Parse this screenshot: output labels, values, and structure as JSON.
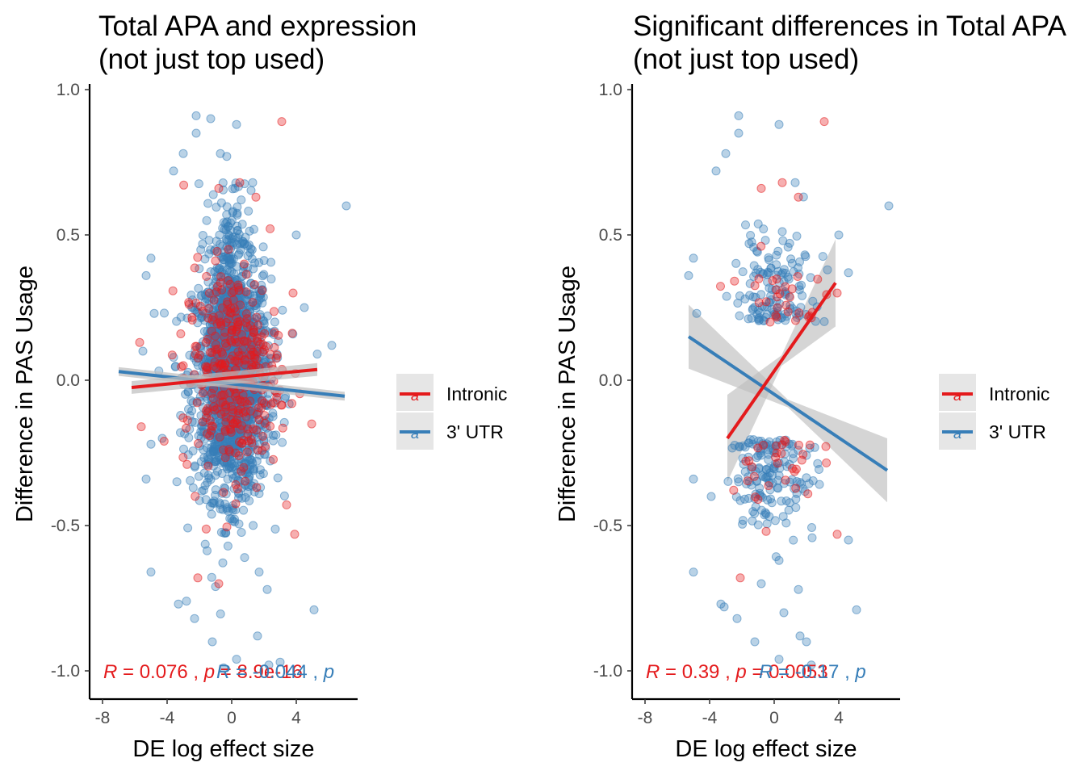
{
  "colors": {
    "intronic": "#E41A1C",
    "utr": "#377EB8",
    "band": "#BEBEBE",
    "axis": "#000000"
  },
  "chart_data": [
    {
      "type": "scatter",
      "title_lines": [
        "Total APA and expression",
        "(not just top used)"
      ],
      "xlabel": "DE log effect size",
      "ylabel": "Difference in PAS Usage",
      "xlim": [
        -8.5,
        7.8
      ],
      "ylim": [
        -1.04,
        1.03
      ],
      "xticks": [
        -8,
        -4,
        0,
        4
      ],
      "xtick_labels": [
        "-8",
        "-4",
        "0",
        "4"
      ],
      "yticks": [
        -1.0,
        -0.5,
        0.0,
        0.5,
        1.0
      ],
      "ytick_labels": [
        "-1.0",
        "-0.5",
        "0.0",
        "0.5",
        "1.0"
      ],
      "grid": false,
      "legend_position": "right",
      "legend": [
        {
          "name": "Intronic",
          "color": "#E41A1C"
        },
        {
          "name": "3' UTR",
          "color": "#377EB8"
        }
      ],
      "series": [
        {
          "name": "3' UTR",
          "color": "#377EB8",
          "point_groups": [
            {
              "x_mean": 0.0,
              "x_sd": 1.2,
              "y_mean": 0.0,
              "y_sd": 0.2,
              "count": 1400
            },
            {
              "x_mean": 0.0,
              "x_sd": 0.6,
              "y_mean": 0.15,
              "y_sd": 0.25,
              "count": 500
            }
          ],
          "outliers": [
            [
              -2.2,
              0.91
            ],
            [
              -1.3,
              0.9
            ],
            [
              0.3,
              0.88
            ],
            [
              -2.2,
              0.85
            ],
            [
              -3.0,
              0.78
            ],
            [
              -0.7,
              0.78
            ],
            [
              -3.6,
              0.72
            ],
            [
              1.3,
              0.68
            ],
            [
              0.2,
              0.66
            ],
            [
              7.1,
              0.6
            ],
            [
              4.0,
              0.5
            ],
            [
              -5.0,
              0.42
            ],
            [
              -5.3,
              0.36
            ],
            [
              -4.8,
              0.23
            ],
            [
              -5.5,
              0.1
            ],
            [
              -5.0,
              -0.22
            ],
            [
              -5.3,
              -0.34
            ],
            [
              -5.0,
              -0.66
            ],
            [
              -3.3,
              -0.77
            ],
            [
              -2.3,
              -0.82
            ],
            [
              -1.2,
              -0.9
            ],
            [
              0.3,
              -0.96
            ],
            [
              1.6,
              -0.88
            ],
            [
              2.3,
              -0.98
            ],
            [
              5.1,
              -0.79
            ],
            [
              6.2,
              0.12
            ],
            [
              -4.3,
              -0.2
            ],
            [
              5.3,
              0.09
            ],
            [
              4.5,
              0.25
            ],
            [
              -2.8,
              -0.76
            ],
            [
              -1.0,
              -0.71
            ],
            [
              0.8,
              -0.61
            ],
            [
              1.7,
              -0.66
            ],
            [
              2.2,
              -0.72
            ],
            [
              -0.5,
              -0.99
            ],
            [
              3.0,
              -0.97
            ]
          ],
          "fit": {
            "x0": -7.0,
            "y0": 0.03,
            "x1": 7.0,
            "y1": -0.055,
            "band": 0.015
          }
        },
        {
          "name": "Intronic",
          "color": "#E41A1C",
          "point_groups": [
            {
              "x_mean": 0.0,
              "x_sd": 1.5,
              "y_mean": 0.03,
              "y_sd": 0.18,
              "count": 350
            }
          ],
          "outliers": [
            [
              3.1,
              0.89
            ],
            [
              0.5,
              0.68
            ],
            [
              1.5,
              0.63
            ],
            [
              -0.8,
              0.66
            ],
            [
              -2.1,
              -0.68
            ],
            [
              3.9,
              -0.53
            ],
            [
              3.8,
              0.3
            ],
            [
              -5.7,
              0.13
            ],
            [
              -5.6,
              -0.16
            ],
            [
              -0.8,
              -0.7
            ],
            [
              -0.2,
              0.45
            ]
          ],
          "fit": {
            "x0": -6.2,
            "y0": -0.025,
            "x1": 5.3,
            "y1": 0.037,
            "band": 0.022
          }
        }
      ],
      "stats_text": [
        {
          "r_symbol": "R",
          "rest": " = 0.076 , ",
          "p_symbol": "p",
          "p_rest": " = 8.9e-16",
          "color": "#E41A1C"
        },
        {
          "r_symbol": "R",
          "rest": " = -0.044 , ",
          "p_symbol": "p",
          "p_rest": " = ",
          "color": "#377EB8"
        }
      ]
    },
    {
      "type": "scatter",
      "title_lines": [
        "Significant differences in Total APA",
        "(not just top used)"
      ],
      "xlabel": "DE log effect size",
      "ylabel": "Difference in PAS Usage",
      "xlim": [
        -8.5,
        7.8
      ],
      "ylim": [
        -1.04,
        1.03
      ],
      "xticks": [
        -8,
        -4,
        0,
        4
      ],
      "xtick_labels": [
        "-8",
        "-4",
        "0",
        "4"
      ],
      "yticks": [
        -1.0,
        -0.5,
        0.0,
        0.5,
        1.0
      ],
      "ytick_labels": [
        "-1.0",
        "-0.5",
        "0.0",
        "0.5",
        "1.0"
      ],
      "grid": false,
      "legend_position": "right",
      "legend": [
        {
          "name": "Intronic",
          "color": "#E41A1C"
        },
        {
          "name": "3' UTR",
          "color": "#377EB8"
        }
      ],
      "series": [
        {
          "name": "3' UTR",
          "color": "#377EB8",
          "point_groups": [
            {
              "x_mean": 0.0,
              "x_sd": 1.3,
              "y_mean": 0.3,
              "y_sd": 0.1,
              "count": 130,
              "y_min": 0.2
            },
            {
              "x_mean": 0.0,
              "x_sd": 1.3,
              "y_mean": -0.3,
              "y_sd": 0.1,
              "count": 150,
              "y_max": -0.2
            }
          ],
          "outliers": [
            [
              -2.2,
              0.91
            ],
            [
              0.3,
              0.88
            ],
            [
              -2.2,
              0.85
            ],
            [
              -3.0,
              0.78
            ],
            [
              -3.6,
              0.72
            ],
            [
              1.3,
              0.68
            ],
            [
              7.1,
              0.6
            ],
            [
              4.0,
              0.5
            ],
            [
              -5.0,
              0.42
            ],
            [
              -5.3,
              0.36
            ],
            [
              -4.8,
              0.23
            ],
            [
              3.3,
              0.38
            ],
            [
              4.6,
              0.37
            ],
            [
              -5.0,
              -0.34
            ],
            [
              -5.0,
              -0.66
            ],
            [
              -3.3,
              -0.77
            ],
            [
              -2.3,
              -0.82
            ],
            [
              -1.2,
              -0.9
            ],
            [
              0.3,
              -0.96
            ],
            [
              1.6,
              -0.88
            ],
            [
              2.3,
              -0.98
            ],
            [
              5.1,
              -0.79
            ],
            [
              0.3,
              -0.62
            ],
            [
              1.5,
              -0.72
            ],
            [
              -0.8,
              -0.7
            ],
            [
              0.6,
              -0.8
            ],
            [
              2.0,
              -0.9
            ],
            [
              4.6,
              -0.55
            ],
            [
              -3.9,
              -0.4
            ],
            [
              -3.1,
              -0.78
            ]
          ],
          "fit": {
            "x0": -5.3,
            "y0": 0.15,
            "x1": 7.0,
            "y1": -0.31,
            "band": 0.11
          }
        },
        {
          "name": "Intronic",
          "color": "#E41A1C",
          "point_groups": [
            {
              "x_mean": 0.5,
              "x_sd": 1.3,
              "y_mean": 0.27,
              "y_sd": 0.06,
              "count": 30,
              "y_min": 0.2
            },
            {
              "x_mean": 0.0,
              "x_sd": 1.3,
              "y_mean": -0.28,
              "y_sd": 0.06,
              "count": 30,
              "y_max": -0.2
            }
          ],
          "outliers": [
            [
              3.1,
              0.89
            ],
            [
              0.5,
              0.68
            ],
            [
              1.5,
              0.63
            ],
            [
              -0.8,
              0.66
            ],
            [
              -2.1,
              -0.68
            ],
            [
              3.9,
              -0.53
            ],
            [
              3.9,
              0.3
            ],
            [
              -1.0,
              -0.41
            ],
            [
              -0.5,
              -0.52
            ]
          ],
          "fit": {
            "x0": -2.9,
            "y0": -0.2,
            "x1": 3.8,
            "y1": 0.335,
            "band": 0.15
          }
        }
      ],
      "stats_text": [
        {
          "r_symbol": "R",
          "rest": " = 0.39 , ",
          "p_symbol": "p",
          "p_rest": " = 0.0053",
          "color": "#E41A1C"
        },
        {
          "r_symbol": "R",
          "rest": " = -0.17 , ",
          "p_symbol": "p",
          "p_rest": " = ",
          "color": "#377EB8"
        }
      ]
    }
  ]
}
